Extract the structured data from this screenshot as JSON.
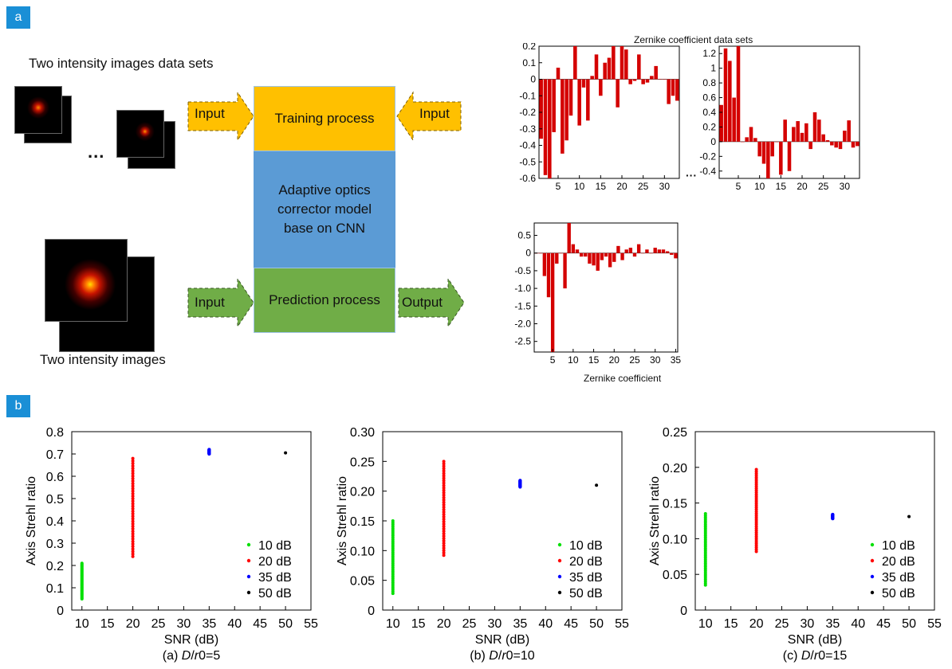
{
  "panel_a": {
    "tag": "a",
    "top_image_label": "Two intensity images data sets",
    "bottom_image_label": "Two intensity images",
    "ellipsis": "...",
    "input_top": "Input",
    "input_right": "Input",
    "input_bottom": "Input",
    "output_label": "Output",
    "training_label": "Training process",
    "model_label": "Adaptive optics corrector model base on CNN",
    "prediction_label": "Prediction process",
    "zernike_title": "Zernike coefficient data sets",
    "zernike_xlabel": "Zernike coefficient",
    "colors": {
      "training": "#ffc000",
      "model": "#5b9bd5",
      "prediction": "#70ad47",
      "arrow_input": "#ffc000",
      "arrow_green": "#70ad47",
      "bar": "#d40000"
    }
  },
  "panel_b": {
    "tag": "b"
  },
  "chart_data": [
    {
      "type": "bar",
      "id": "zern1",
      "x": [
        1,
        2,
        3,
        4,
        5,
        6,
        7,
        8,
        9,
        10,
        11,
        12,
        13,
        14,
        15,
        16,
        17,
        18,
        19,
        20,
        21,
        22,
        23,
        24,
        25,
        26,
        27,
        28,
        29,
        30,
        31,
        32,
        33
      ],
      "values": [
        -0.36,
        -0.58,
        -0.6,
        -0.32,
        0.07,
        -0.45,
        -0.37,
        -0.22,
        0.2,
        -0.28,
        -0.05,
        -0.25,
        0.02,
        0.15,
        -0.1,
        0.1,
        0.13,
        0.2,
        -0.17,
        0.2,
        0.18,
        -0.03,
        -0.01,
        0.15,
        -0.03,
        -0.02,
        0.02,
        0.08,
        0.0,
        0.0,
        -0.15,
        -0.1,
        -0.13
      ],
      "xticks": [
        5,
        10,
        15,
        20,
        25,
        30
      ],
      "yticks": [
        0.2,
        0.1,
        0,
        -0.1,
        -0.2,
        -0.3,
        -0.4,
        -0.5,
        -0.6
      ],
      "ylim": [
        -0.6,
        0.2
      ],
      "xlim": [
        0.5,
        33.5
      ]
    },
    {
      "type": "bar",
      "id": "zern2",
      "x": [
        1,
        2,
        3,
        4,
        5,
        6,
        7,
        8,
        9,
        10,
        11,
        12,
        13,
        14,
        15,
        16,
        17,
        18,
        19,
        20,
        21,
        22,
        23,
        24,
        25,
        26,
        27,
        28,
        29,
        30,
        31,
        32,
        33
      ],
      "values": [
        0.5,
        1.27,
        1.1,
        0.6,
        1.3,
        0.0,
        0.06,
        0.2,
        0.05,
        -0.2,
        -0.3,
        -0.5,
        -0.2,
        0.0,
        -0.45,
        0.3,
        -0.4,
        0.2,
        0.28,
        0.12,
        0.25,
        -0.1,
        0.4,
        0.3,
        0.1,
        0.02,
        -0.05,
        -0.08,
        -0.1,
        0.15,
        0.29,
        -0.08,
        -0.06
      ],
      "xticks": [
        5,
        10,
        15,
        20,
        25,
        30
      ],
      "yticks": [
        1.2,
        1.0,
        0.8,
        0.6,
        0.4,
        0.2,
        0,
        -0.2,
        -0.4
      ],
      "ylim": [
        -0.5,
        1.3
      ],
      "xlim": [
        0.5,
        33.5
      ]
    },
    {
      "type": "bar",
      "id": "zern3",
      "x": [
        1,
        2,
        3,
        4,
        5,
        6,
        7,
        8,
        9,
        10,
        11,
        12,
        13,
        14,
        15,
        16,
        17,
        18,
        19,
        20,
        21,
        22,
        23,
        24,
        25,
        26,
        27,
        28,
        29,
        30,
        31,
        32,
        33,
        34,
        35
      ],
      "values": [
        0.0,
        0.0,
        -0.65,
        -1.25,
        -2.8,
        -0.3,
        0.0,
        -1.0,
        0.85,
        0.25,
        0.1,
        -0.1,
        -0.1,
        -0.3,
        -0.35,
        -0.5,
        -0.2,
        -0.1,
        -0.4,
        -0.25,
        0.2,
        -0.2,
        0.1,
        0.15,
        -0.1,
        0.25,
        0.0,
        0.1,
        0.0,
        0.15,
        0.1,
        0.1,
        0.05,
        -0.05,
        -0.15
      ],
      "xticks": [
        5,
        10,
        15,
        20,
        25,
        30,
        35
      ],
      "ytick_labels": [
        "0.5",
        "0",
        "-0.5",
        "-1.0",
        "-1.5",
        "-2.0",
        "-2.5"
      ],
      "yticks": [
        0.5,
        0,
        -0.5,
        -1.0,
        -1.5,
        -2.0,
        -2.5
      ],
      "ylim": [
        -2.8,
        0.85
      ],
      "xlim": [
        0.5,
        35.5
      ],
      "xlabel": "Zernike coefficient"
    },
    {
      "type": "scatter",
      "id": "snr5",
      "xlabel": "SNR (dB)",
      "ylabel": "Axis Strehl ratio",
      "caption": "(a) D/r0=5",
      "caption_parts": [
        "(a) ",
        "D",
        "/",
        "r",
        "0=5"
      ],
      "xlim": [
        8,
        55
      ],
      "ylim": [
        0,
        0.8
      ],
      "xticks": [
        10,
        15,
        20,
        25,
        30,
        35,
        40,
        45,
        50,
        55
      ],
      "yticks": [
        0,
        0.1,
        0.2,
        0.3,
        0.4,
        0.5,
        0.6,
        0.7,
        0.8
      ],
      "ytick_labels": [
        "0",
        "0.1",
        "0.2",
        "0.3",
        "0.4",
        "0.5",
        "0.6",
        "0.7",
        "0.8"
      ],
      "series": [
        {
          "name": "10 dB",
          "x": 10,
          "ymin": 0.05,
          "ymax": 0.21,
          "color": "#00e000"
        },
        {
          "name": "20 dB",
          "x": 20,
          "ymin": 0.24,
          "ymax": 0.68,
          "color": "#ff0000"
        },
        {
          "name": "35 dB",
          "x": 35,
          "ymin": 0.7,
          "ymax": 0.72,
          "color": "#0000ff"
        },
        {
          "name": "50 dB",
          "x": 50,
          "ymin": 0.705,
          "ymax": 0.705,
          "color": "#000000"
        }
      ],
      "legend": "bottom-right"
    },
    {
      "type": "scatter",
      "id": "snr10",
      "xlabel": "SNR (dB)",
      "ylabel": "Axis Strehl ratio",
      "caption": "(b) D/r0=10",
      "caption_parts": [
        "(b) ",
        "D",
        "/",
        "r",
        "0=10"
      ],
      "xlim": [
        8,
        55
      ],
      "ylim": [
        0,
        0.3
      ],
      "xticks": [
        10,
        15,
        20,
        25,
        30,
        35,
        40,
        45,
        50,
        55
      ],
      "yticks": [
        0,
        0.05,
        0.1,
        0.15,
        0.2,
        0.25,
        0.3
      ],
      "ytick_labels": [
        "0",
        "0.05",
        "0.10",
        "0.15",
        "0.20",
        "0.25",
        "0.30"
      ],
      "series": [
        {
          "name": "10 dB",
          "x": 10,
          "ymin": 0.028,
          "ymax": 0.15,
          "color": "#00e000"
        },
        {
          "name": "20 dB",
          "x": 20,
          "ymin": 0.092,
          "ymax": 0.25,
          "color": "#ff0000"
        },
        {
          "name": "35 dB",
          "x": 35,
          "ymin": 0.207,
          "ymax": 0.218,
          "color": "#0000ff"
        },
        {
          "name": "50 dB",
          "x": 50,
          "ymin": 0.21,
          "ymax": 0.21,
          "color": "#000000"
        }
      ],
      "legend": "bottom-right"
    },
    {
      "type": "scatter",
      "id": "snr15",
      "xlabel": "SNR (dB)",
      "ylabel": "Axis Strehl ratio",
      "caption": "(c) D/r0=15",
      "caption_parts": [
        "(c) ",
        "D",
        "/",
        "r",
        "0=15"
      ],
      "xlim": [
        8,
        55
      ],
      "ylim": [
        0,
        0.25
      ],
      "xticks": [
        10,
        15,
        20,
        25,
        30,
        35,
        40,
        45,
        50,
        55
      ],
      "yticks": [
        0,
        0.05,
        0.1,
        0.15,
        0.2,
        0.25
      ],
      "ytick_labels": [
        "0",
        "0.05",
        "0.10",
        "0.15",
        "0.20",
        "0.25"
      ],
      "series": [
        {
          "name": "10 dB",
          "x": 10,
          "ymin": 0.035,
          "ymax": 0.135,
          "color": "#00e000"
        },
        {
          "name": "20 dB",
          "x": 20,
          "ymin": 0.082,
          "ymax": 0.197,
          "color": "#ff0000"
        },
        {
          "name": "35 dB",
          "x": 35,
          "ymin": 0.128,
          "ymax": 0.134,
          "color": "#0000ff"
        },
        {
          "name": "50 dB",
          "x": 50,
          "ymin": 0.131,
          "ymax": 0.131,
          "color": "#000000"
        }
      ],
      "legend": "bottom-right"
    }
  ]
}
